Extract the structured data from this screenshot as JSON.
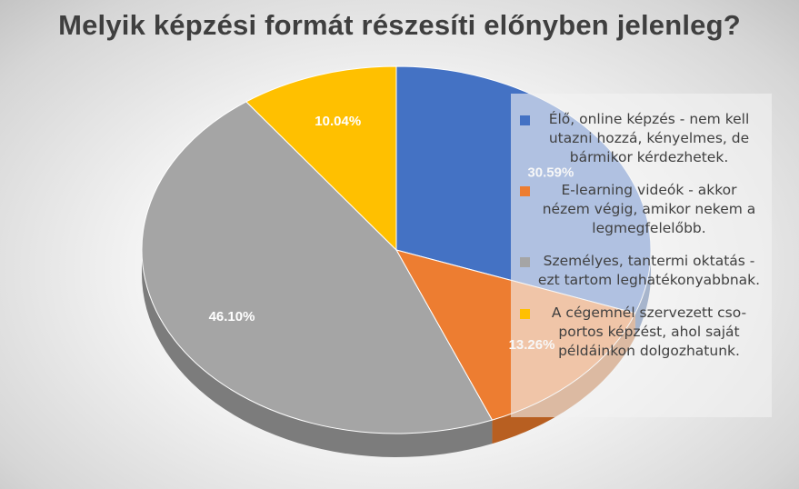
{
  "chart_data": {
    "type": "pie",
    "title": "Melyik képzési formát részesíti előnyben jelenleg?",
    "categories": [
      "Élő, online képzés - nem kell utazni hozzá, kényelmes, de bármikor kérdezhetek.",
      "E-learning videók - akkor nézem végig, amikor nekem a legmegfelelőbb.",
      "Személyes, tantermi oktatás - ezt tartom leghatékonyabbnak.",
      "A cégemnél szervezett cso-portos képzést, ahol saját példáinkon dolgozhatunk."
    ],
    "values": [
      30.59,
      13.26,
      46.1,
      10.04
    ],
    "data_labels": [
      "30.59%",
      "13.26%",
      "46.10%",
      "10.04%"
    ],
    "colors": [
      "#4472c4",
      "#ed7d31",
      "#a5a5a5",
      "#ffc000"
    ],
    "side_colors": [
      "#2f528f",
      "#b85f21",
      "#7c7c7c",
      "#bf9000"
    ],
    "legend_position": "right",
    "style": "3d"
  }
}
